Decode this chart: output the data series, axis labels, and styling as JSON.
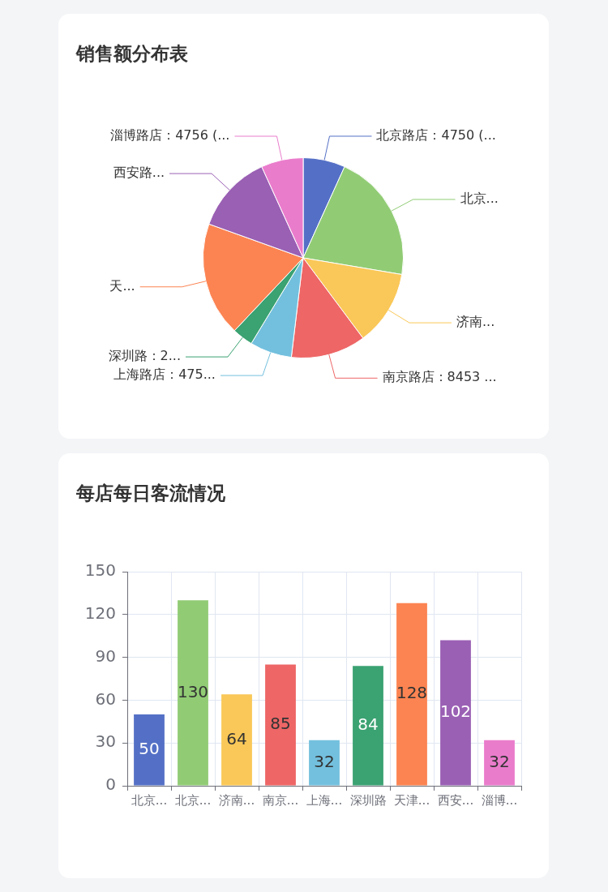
{
  "chart_data": [
    {
      "type": "pie",
      "title": "销售额分布表",
      "categories": [
        "北京路店：4750 (...",
        "北京...",
        "济南...",
        "南京路店：8453 ...",
        "上海路店：475...",
        "深圳路：2...",
        "天...",
        "西安路...",
        "淄博路店：4756 (..."
      ],
      "values": [
        4750,
        14600,
        8500,
        8453,
        4750,
        2350,
        12900,
        8900,
        4756
      ],
      "colors": [
        "#5470c6",
        "#91cc75",
        "#fac858",
        "#ee6666",
        "#73c0de",
        "#3ba272",
        "#fc8452",
        "#9a60b4",
        "#ea7ccc"
      ]
    },
    {
      "type": "bar",
      "title": "每店每日客流情况",
      "categories": [
        "北京...",
        "北京...",
        "济南...",
        "南京...",
        "上海...",
        "深圳路",
        "天津...",
        "西安...",
        "淄博..."
      ],
      "values": [
        50,
        130,
        64,
        85,
        32,
        84,
        128,
        102,
        32
      ],
      "colors": [
        "#5470c6",
        "#91cc75",
        "#fac858",
        "#ee6666",
        "#73c0de",
        "#3ba272",
        "#fc8452",
        "#9a60b4",
        "#ea7ccc"
      ],
      "ylim": [
        0,
        150
      ],
      "yticks": [
        0,
        30,
        60,
        90,
        120,
        150
      ],
      "grid": true,
      "data_labels": true
    }
  ]
}
